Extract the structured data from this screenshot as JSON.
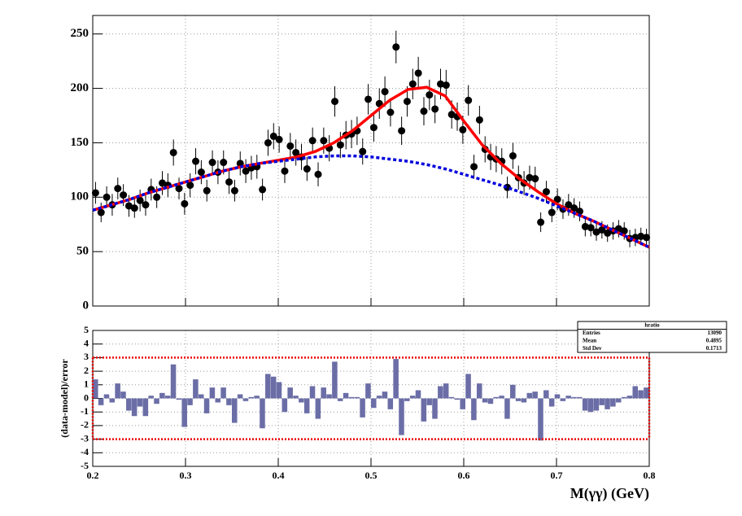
{
  "chart_data": [
    {
      "type": "scatter",
      "xlim": [
        0.2,
        0.8
      ],
      "ylim": [
        0,
        267
      ],
      "xticks": [
        0.2,
        0.3,
        0.4,
        0.5,
        0.6,
        0.7,
        0.8
      ],
      "yticks": [
        0,
        50,
        100,
        150,
        200,
        250
      ],
      "grid": true,
      "series": [
        {
          "style": "markers",
          "color": "#000000",
          "x": [
            0.203,
            0.209,
            0.215,
            0.221,
            0.227,
            0.233,
            0.239,
            0.245,
            0.251,
            0.257,
            0.263,
            0.269,
            0.275,
            0.281,
            0.287,
            0.293,
            0.299,
            0.305,
            0.311,
            0.317,
            0.323,
            0.329,
            0.335,
            0.341,
            0.347,
            0.353,
            0.359,
            0.365,
            0.371,
            0.377,
            0.383,
            0.389,
            0.395,
            0.401,
            0.407,
            0.413,
            0.419,
            0.425,
            0.431,
            0.437,
            0.443,
            0.449,
            0.455,
            0.461,
            0.467,
            0.473,
            0.479,
            0.485,
            0.491,
            0.497,
            0.503,
            0.509,
            0.515,
            0.521,
            0.527,
            0.533,
            0.539,
            0.545,
            0.551,
            0.557,
            0.563,
            0.569,
            0.575,
            0.581,
            0.587,
            0.593,
            0.599,
            0.605,
            0.611,
            0.617,
            0.623,
            0.629,
            0.635,
            0.641,
            0.647,
            0.653,
            0.659,
            0.665,
            0.671,
            0.677,
            0.683,
            0.689,
            0.695,
            0.701,
            0.707,
            0.713,
            0.719,
            0.725,
            0.731,
            0.737,
            0.743,
            0.749,
            0.755,
            0.761,
            0.767,
            0.773,
            0.779,
            0.785,
            0.791,
            0.797
          ],
          "values": [
            104,
            86,
            100,
            93,
            108,
            102,
            92,
            90,
            97,
            93,
            107,
            100,
            113,
            111,
            141,
            108,
            94,
            111,
            133,
            123,
            106,
            132,
            123,
            132,
            114,
            106,
            131,
            124,
            127,
            128,
            107,
            150,
            156,
            153,
            124,
            147,
            141,
            137,
            126,
            152,
            121,
            152,
            145,
            188,
            148,
            157,
            158,
            161,
            142,
            190,
            164,
            186,
            197,
            178,
            238,
            161,
            188,
            204,
            214,
            179,
            194,
            181,
            204,
            203,
            176,
            174,
            162,
            189,
            128,
            171,
            144,
            137,
            135,
            133,
            109,
            138,
            118,
            113,
            118,
            117,
            77,
            105,
            86,
            98,
            89,
            93,
            90,
            87,
            73,
            72,
            68,
            70,
            67,
            69,
            71,
            69,
            62,
            63,
            64,
            63
          ],
          "errors": [
            10,
            9,
            10,
            10,
            10,
            10,
            10,
            9,
            10,
            10,
            10,
            10,
            11,
            11,
            12,
            10,
            10,
            11,
            12,
            11,
            10,
            11,
            11,
            11,
            11,
            10,
            11,
            11,
            11,
            11,
            10,
            12,
            12,
            12,
            11,
            12,
            12,
            12,
            11,
            12,
            11,
            12,
            12,
            14,
            12,
            13,
            13,
            13,
            12,
            14,
            13,
            14,
            14,
            13,
            15,
            13,
            14,
            14,
            15,
            13,
            14,
            13,
            14,
            14,
            13,
            13,
            13,
            14,
            11,
            13,
            12,
            12,
            12,
            12,
            10,
            12,
            11,
            11,
            11,
            11,
            9,
            10,
            9,
            10,
            9,
            10,
            9,
            9,
            9,
            8,
            8,
            8,
            8,
            8,
            8,
            8,
            8,
            8,
            8,
            8
          ]
        },
        {
          "style": "line",
          "color": "#ff0000",
          "x": [
            0.2,
            0.22,
            0.24,
            0.26,
            0.28,
            0.3,
            0.32,
            0.34,
            0.36,
            0.38,
            0.4,
            0.42,
            0.44,
            0.46,
            0.48,
            0.5,
            0.52,
            0.54,
            0.56,
            0.58,
            0.6,
            0.62,
            0.64,
            0.66,
            0.68,
            0.7,
            0.72,
            0.74,
            0.76,
            0.78,
            0.8
          ],
          "values": [
            88,
            93,
            98,
            104,
            109,
            114,
            119,
            124,
            128,
            131,
            134,
            137,
            142,
            150,
            161,
            175,
            189,
            199,
            201,
            193,
            170,
            148,
            131,
            117,
            105,
            94,
            85,
            78,
            70,
            62,
            54
          ]
        },
        {
          "style": "dotted",
          "color": "#0000dd",
          "x": [
            0.2,
            0.22,
            0.24,
            0.26,
            0.28,
            0.3,
            0.32,
            0.34,
            0.36,
            0.38,
            0.4,
            0.42,
            0.44,
            0.46,
            0.48,
            0.5,
            0.52,
            0.54,
            0.56,
            0.58,
            0.6,
            0.62,
            0.64,
            0.66,
            0.68,
            0.7,
            0.72,
            0.74,
            0.76,
            0.78,
            0.8
          ],
          "values": [
            88,
            93,
            98,
            104,
            109,
            114,
            119,
            124,
            128,
            131,
            133,
            135,
            137,
            138,
            138,
            137,
            135,
            133,
            130,
            126,
            121,
            116,
            111,
            105,
            99,
            92,
            85,
            78,
            70,
            62,
            54
          ]
        }
      ]
    },
    {
      "type": "histogram",
      "xlabel": "M(γγ) (GeV)",
      "ylabel": "(data-model)/error",
      "xlim": [
        0.2,
        0.8
      ],
      "ylim": [
        -5,
        5
      ],
      "xticks": [
        0.2,
        0.3,
        0.4,
        0.5,
        0.6,
        0.7,
        0.8
      ],
      "yticks": [
        -5,
        -4,
        -3,
        -2,
        -1,
        0,
        1,
        2,
        3,
        4,
        5
      ],
      "grid": true,
      "color": "#6b6ea6",
      "bins": [
        0.2,
        0.206,
        0.212,
        0.218,
        0.224,
        0.23,
        0.236,
        0.242,
        0.248,
        0.254,
        0.26,
        0.266,
        0.272,
        0.278,
        0.284,
        0.29,
        0.296,
        0.302,
        0.308,
        0.314,
        0.32,
        0.326,
        0.332,
        0.338,
        0.344,
        0.35,
        0.356,
        0.362,
        0.368,
        0.374,
        0.38,
        0.386,
        0.392,
        0.398,
        0.404,
        0.41,
        0.416,
        0.422,
        0.428,
        0.434,
        0.44,
        0.446,
        0.452,
        0.458,
        0.464,
        0.47,
        0.476,
        0.482,
        0.488,
        0.494,
        0.5,
        0.506,
        0.512,
        0.518,
        0.524,
        0.53,
        0.536,
        0.542,
        0.548,
        0.554,
        0.56,
        0.566,
        0.572,
        0.578,
        0.584,
        0.59,
        0.596,
        0.602,
        0.608,
        0.614,
        0.62,
        0.626,
        0.632,
        0.638,
        0.644,
        0.65,
        0.656,
        0.662,
        0.668,
        0.674,
        0.68,
        0.686,
        0.692,
        0.698,
        0.704,
        0.71,
        0.716,
        0.722,
        0.728,
        0.734,
        0.74,
        0.746,
        0.752,
        0.758,
        0.764,
        0.77,
        0.776,
        0.782,
        0.788,
        0.794,
        0.8
      ],
      "values": [
        1.4,
        -0.5,
        0.3,
        -0.3,
        1.1,
        0.5,
        -0.9,
        -1.3,
        -0.6,
        -1.3,
        0.2,
        -0.4,
        0.4,
        0.2,
        2.5,
        -0.1,
        -2.1,
        -0.5,
        1.4,
        0.3,
        -1.1,
        0.8,
        -0.3,
        0.8,
        -0.5,
        -1.8,
        0.3,
        -0.2,
        0.1,
        0.2,
        -2.2,
        1.8,
        1.6,
        1.2,
        -1.0,
        0.8,
        0.2,
        -0.3,
        -1.1,
        0.9,
        -1.5,
        0.8,
        0.3,
        2.7,
        -0.2,
        0.4,
        0.1,
        0.1,
        -1.4,
        1.1,
        -0.7,
        0.2,
        0.5,
        -0.8,
        2.9,
        -2.7,
        -0.2,
        0.2,
        0.6,
        -1.7,
        -0.5,
        -1.5,
        0.9,
        1.1,
        0.1,
        -0.1,
        -0.8,
        1.8,
        -1.6,
        1.1,
        -0.3,
        -0.4,
        0.1,
        0.2,
        -1.5,
        1.0,
        -0.2,
        -0.3,
        0.4,
        0.5,
        -3.1,
        0.6,
        -0.6,
        0.3,
        -0.2,
        0.2,
        0.1,
        0.1,
        -0.9,
        -1.0,
        -0.9,
        -0.5,
        -0.8,
        -0.6,
        -0.3,
        0.1,
        0.2,
        0.9,
        0.6,
        0.8
      ],
      "reference_lines": [
        -3,
        3
      ],
      "reference_color": "#ee0000",
      "stats": {
        "title": "hratio",
        "rows": [
          {
            "label": "Entries",
            "value": 13090
          },
          {
            "label": "Mean",
            "value": 0.4895
          },
          {
            "label": "Std Dev",
            "value": 0.1713
          }
        ]
      }
    }
  ]
}
